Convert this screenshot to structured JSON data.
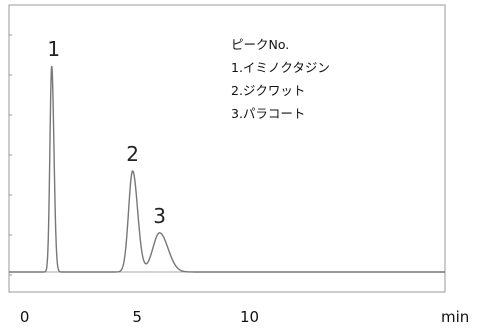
{
  "chart_data": {
    "type": "line",
    "x_unit": "min",
    "x_ticks": [
      {
        "value": 0,
        "label": "0"
      },
      {
        "value": 5,
        "label": "5"
      },
      {
        "value": 10,
        "label": "10"
      }
    ],
    "xlim": [
      -0.7,
      18.7
    ],
    "grid": false,
    "series": [
      {
        "peaks": [
          {
            "label": "1",
            "retention_min": 1.2,
            "height": 1.0,
            "width_min": 0.08
          },
          {
            "label": "2",
            "retention_min": 4.8,
            "height": 0.49,
            "width_min": 0.18
          },
          {
            "label": "3",
            "retention_min": 6.0,
            "height": 0.19,
            "width_min": 0.3
          }
        ]
      }
    ],
    "legend": {
      "title": "ピークNo.",
      "items": [
        "1.イミノクタジン",
        "2.ジクワット",
        "3.パラコート"
      ],
      "position": "top-right"
    }
  },
  "colors": {
    "trace": "#777777",
    "frame": "#9a9a9a",
    "text": "#111111"
  }
}
